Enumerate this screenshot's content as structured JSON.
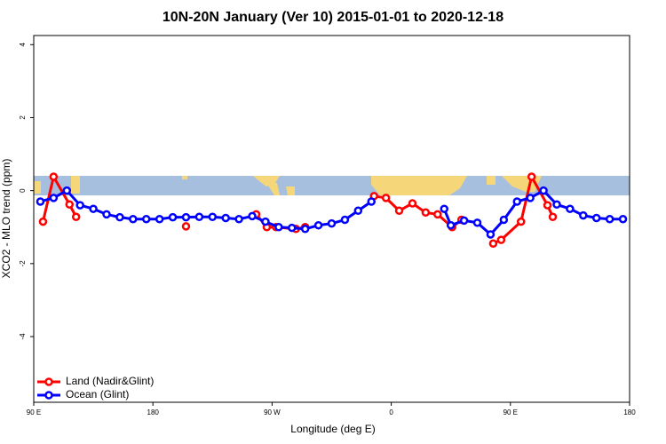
{
  "chart_data": {
    "type": "line",
    "title": "10N-20N January (Ver 10)   2015-01-01 to 2020-12-18",
    "x_label": "Longitude (deg E)",
    "y_label": "XCO2 - MLO trend (ppm)",
    "xlim": [
      90,
      540
    ],
    "ylim": [
      -5.8,
      4.25
    ],
    "xticks": [
      {
        "value": 90,
        "label": "90 E"
      },
      180,
      {
        "value": 270,
        "label": "90 W"
      },
      {
        "value": 360,
        "label": "0"
      },
      {
        "value": 450,
        "label": "90 E"
      },
      {
        "value": 540,
        "label": "180"
      }
    ],
    "yticks": [
      -4,
      -2,
      0,
      2,
      4
    ],
    "legend": "bottomleft",
    "series": [
      {
        "name": "Land (Nadir&Glint)",
        "color": "#ff0000",
        "x": [
          97,
          105,
          117,
          122,
          160,
          205,
          230,
          258,
          266,
          273,
          288,
          295,
          320,
          347,
          356,
          366,
          376,
          386,
          395,
          406,
          413,
          425,
          437,
          443,
          458,
          466,
          478,
          482
        ],
        "values": [
          -0.85,
          0.38,
          -0.38,
          -0.72,
          null,
          -0.98,
          null,
          -0.65,
          -1.0,
          -1.0,
          -1.05,
          -1.0,
          null,
          -0.15,
          -0.2,
          -0.55,
          -0.35,
          -0.6,
          -0.65,
          -1.0,
          -0.8,
          null,
          -1.45,
          -1.35,
          -0.85,
          0.38,
          -0.4,
          -0.72
        ]
      },
      {
        "name": "Ocean (Glint)",
        "color": "#0000ff",
        "x": [
          95,
          105,
          115,
          125,
          135,
          145,
          155,
          165,
          175,
          185,
          195,
          205,
          215,
          225,
          235,
          245,
          255,
          265,
          275,
          285,
          295,
          305,
          315,
          325,
          335,
          345,
          375,
          400,
          405,
          415,
          425,
          435,
          445,
          455,
          465,
          475,
          485,
          495,
          505,
          515,
          525,
          535
        ],
        "values": [
          -0.3,
          -0.2,
          0.0,
          -0.4,
          -0.5,
          -0.65,
          -0.73,
          -0.78,
          -0.78,
          -0.78,
          -0.73,
          -0.73,
          -0.72,
          -0.72,
          -0.75,
          -0.78,
          -0.7,
          -0.85,
          -1.0,
          -1.02,
          -1.05,
          -0.95,
          -0.9,
          -0.8,
          -0.55,
          -0.3,
          null,
          -0.5,
          -0.95,
          -0.82,
          -0.88,
          -1.2,
          -0.8,
          -0.3,
          -0.2,
          0.0,
          -0.38,
          -0.5,
          -0.68,
          -0.75,
          -0.78,
          -0.78
        ]
      }
    ]
  }
}
